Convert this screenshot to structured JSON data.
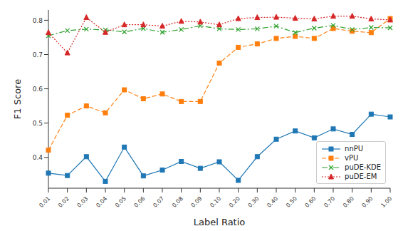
{
  "chart_data": {
    "type": "line",
    "x_label": "Label Ratio",
    "y_label": "F1 Score",
    "categories": [
      "0.01",
      "0.02",
      "0.03",
      "0.04",
      "0.05",
      "0.06",
      "0.07",
      "0.08",
      "0.09",
      "0.10",
      "0.20",
      "0.30",
      "0.40",
      "0.50",
      "0.60",
      "0.70",
      "0.80",
      "0.90",
      "1.00"
    ],
    "ylim": [
      0.31,
      0.83
    ],
    "yticks": [
      0.4,
      0.5,
      0.6,
      0.7,
      0.8
    ],
    "legend": "lower right",
    "grid": false,
    "series": [
      {
        "name": "nnPU",
        "color": "#1f77b4",
        "marker": "square",
        "line_style": "solid",
        "values": [
          0.354,
          0.347,
          0.402,
          0.33,
          0.43,
          0.346,
          0.363,
          0.388,
          0.368,
          0.387,
          0.333,
          0.402,
          0.453,
          0.477,
          0.457,
          0.483,
          0.467,
          0.526,
          0.518
        ]
      },
      {
        "name": "vPU",
        "color": "#ff7f0e",
        "marker": "square",
        "line_style": "dashed",
        "values": [
          0.421,
          0.523,
          0.55,
          0.53,
          0.597,
          0.571,
          0.585,
          0.563,
          0.563,
          0.675,
          0.721,
          0.731,
          0.747,
          0.753,
          0.747,
          0.776,
          0.768,
          0.764,
          0.805
        ]
      },
      {
        "name": "puDE-KDE",
        "color": "#2ca02c",
        "marker": "x",
        "line_style": "dashdot",
        "values": [
          0.755,
          0.77,
          0.774,
          0.772,
          0.766,
          0.776,
          0.765,
          0.773,
          0.784,
          0.775,
          0.773,
          0.775,
          0.783,
          0.764,
          0.777,
          0.785,
          0.773,
          0.779,
          0.778
        ]
      },
      {
        "name": "puDE-EM",
        "color": "#d62728",
        "marker": "triangle",
        "line_style": "dotted",
        "values": [
          0.764,
          0.705,
          0.808,
          0.765,
          0.787,
          0.787,
          0.783,
          0.797,
          0.795,
          0.787,
          0.805,
          0.808,
          0.809,
          0.806,
          0.804,
          0.812,
          0.812,
          0.804,
          0.801
        ]
      }
    ]
  }
}
